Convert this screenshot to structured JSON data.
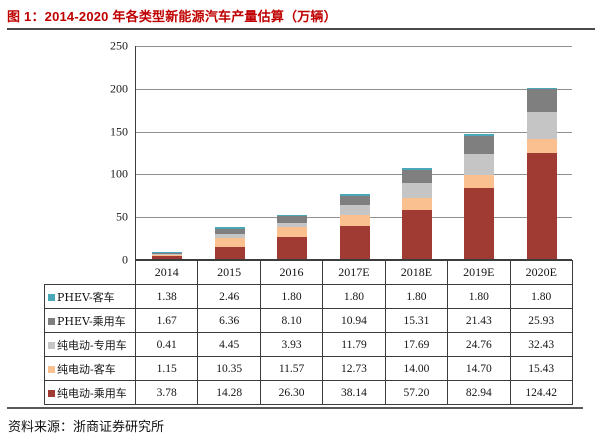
{
  "title": {
    "label": "图 1：2014-2020 年各类型新能源汽车产量估算（万辆）"
  },
  "footer": {
    "source_label": "资料来源：浙商证券研究所"
  },
  "colors": {
    "title_red": "#C00000",
    "border": "#3c3c3c",
    "gridline": "#909090"
  },
  "chart_data": {
    "type": "bar",
    "stacked": true,
    "title": "2014-2020 年各类型新能源汽车产量估算（万辆）",
    "unit": "万辆",
    "categories": [
      "2014",
      "2015",
      "2016",
      "2017E",
      "2018E",
      "2019E",
      "2020E"
    ],
    "series": [
      {
        "name": "PHEV-客车",
        "color": "#4AA7B8",
        "values": [
          1.38,
          2.46,
          1.8,
          1.8,
          1.8,
          1.8,
          1.8
        ]
      },
      {
        "name": "PHEV-乘用车",
        "color": "#7F7F7F",
        "values": [
          1.67,
          6.36,
          8.1,
          10.94,
          15.31,
          21.43,
          25.93
        ]
      },
      {
        "name": "纯电动-专用车",
        "color": "#C5C5C5",
        "values": [
          0.41,
          4.45,
          3.93,
          11.79,
          17.69,
          24.76,
          32.43
        ]
      },
      {
        "name": "纯电动-客车",
        "color": "#FAC090",
        "values": [
          1.15,
          10.35,
          11.57,
          12.73,
          14.0,
          14.7,
          15.43
        ]
      },
      {
        "name": "纯电动-乘用车",
        "color": "#A03B33",
        "values": [
          3.78,
          14.28,
          26.3,
          38.14,
          57.2,
          82.94,
          124.42
        ]
      }
    ],
    "stack_order_bottom_to_top": [
      "纯电动-乘用车",
      "纯电动-客车",
      "纯电动-专用车",
      "PHEV-乘用车",
      "PHEV-客车"
    ],
    "y_axis": {
      "min": 0,
      "max": 250,
      "tick_step": 50,
      "ticks": [
        0,
        50,
        100,
        150,
        200,
        250
      ]
    },
    "grid": true,
    "legend_position": "table-left",
    "value_decimals": 2
  }
}
